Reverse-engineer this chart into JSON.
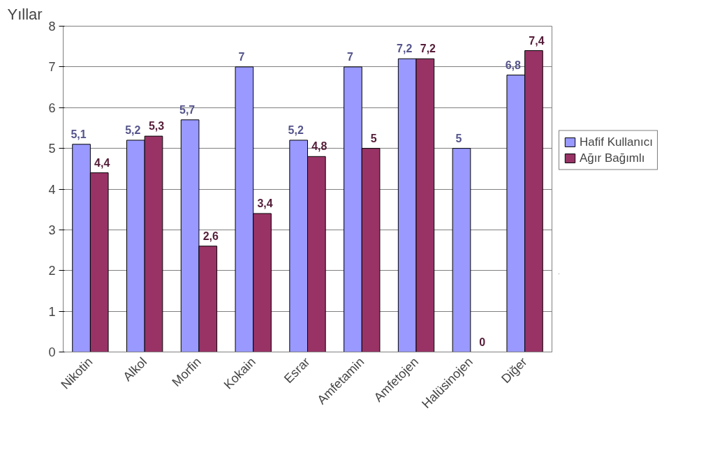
{
  "chart_data": {
    "type": "bar",
    "ylabel": "Yıllar",
    "categories": [
      "Nikotin",
      "Alkol",
      "Morfin",
      "Kokain",
      "Esrar",
      "Amfetamin",
      "Amfetojen",
      "Halüsinojen",
      "Diğer"
    ],
    "series": [
      {
        "name": "Hafif Kullanıcı",
        "color": "#9999ff",
        "values": [
          5.1,
          5.2,
          5.7,
          7,
          5.2,
          7,
          7.2,
          5,
          6.8
        ],
        "value_labels": [
          "5,1",
          "5,2",
          "5,7",
          "7",
          "5,2",
          "7",
          "7,2",
          "5",
          "6,8"
        ]
      },
      {
        "name": "Ağır Bağımlı",
        "color": "#993366",
        "values": [
          4.4,
          5.3,
          2.6,
          3.4,
          4.8,
          5,
          7.2,
          0,
          7.4
        ],
        "value_labels": [
          "4,4",
          "5,3",
          "2,6",
          "3,4",
          "4,8",
          "5",
          "7,2",
          "0",
          "7,4"
        ]
      }
    ],
    "ylim": [
      0,
      8
    ],
    "yticks": [
      0,
      1,
      2,
      3,
      4,
      5,
      6,
      7,
      8
    ],
    "grid": "y",
    "legend": "right"
  }
}
